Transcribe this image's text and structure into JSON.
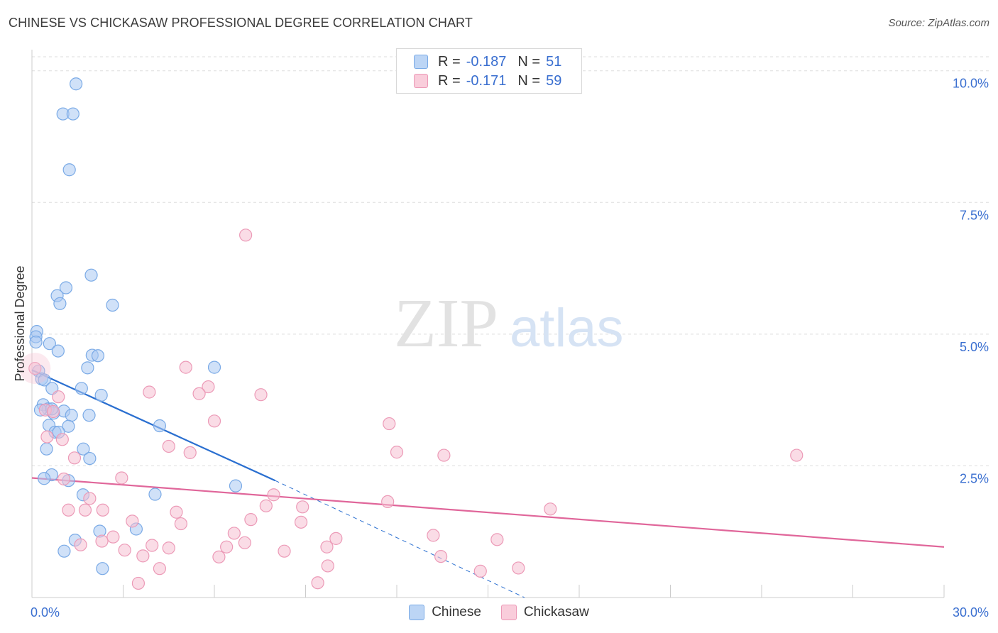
{
  "header": {
    "title": "CHINESE VS CHICKASAW PROFESSIONAL DEGREE CORRELATION CHART",
    "source": "Source: ZipAtlas.com"
  },
  "watermark": {
    "zip": "ZIP",
    "atlas": "atlas"
  },
  "legend": {
    "chinese": {
      "r_label": "R =",
      "r_value": "-0.187",
      "n_label": "N =",
      "n_value": "51"
    },
    "chickasaw": {
      "r_label": "R =",
      "r_value": "-0.171",
      "n_label": "N =",
      "n_value": "59"
    }
  },
  "colors": {
    "chinese_fill": "#a9c9f2",
    "chinese_stroke": "#7aaae6",
    "chinese_line": "#2a6fd0",
    "chickasaw_fill": "#f6bfd1",
    "chickasaw_stroke": "#ec9ab7",
    "chickasaw_line": "#e0669a",
    "axis_label": "#3a6fd0",
    "grid": "#dddddd"
  },
  "chart_data": {
    "type": "scatter",
    "title": "CHINESE VS CHICKASAW PROFESSIONAL DEGREE CORRELATION CHART",
    "xlabel": "",
    "ylabel": "Professional Degree",
    "xlim": [
      0,
      30
    ],
    "ylim": [
      0,
      10.4
    ],
    "x_tick_labels": [
      "0.0%",
      "30.0%"
    ],
    "y_ticks": [
      2.5,
      5.0,
      7.5,
      10.0
    ],
    "y_tick_labels": [
      "2.5%",
      "5.0%",
      "7.5%",
      "10.0%"
    ],
    "grid": true,
    "legend_position": "top-center",
    "series": [
      {
        "name": "Chinese",
        "r": -0.187,
        "n": 51,
        "points": [
          [
            1.45,
            9.75
          ],
          [
            1.02,
            9.18
          ],
          [
            1.35,
            9.18
          ],
          [
            1.23,
            8.12
          ],
          [
            1.95,
            6.12
          ],
          [
            1.12,
            5.88
          ],
          [
            0.83,
            5.73
          ],
          [
            0.92,
            5.58
          ],
          [
            2.65,
            5.55
          ],
          [
            0.16,
            5.05
          ],
          [
            0.13,
            4.95
          ],
          [
            0.13,
            4.85
          ],
          [
            0.58,
            4.82
          ],
          [
            0.86,
            4.68
          ],
          [
            1.98,
            4.6
          ],
          [
            2.17,
            4.59
          ],
          [
            1.83,
            4.36
          ],
          [
            6.0,
            4.37
          ],
          [
            0.22,
            4.3
          ],
          [
            0.32,
            4.15
          ],
          [
            0.41,
            4.13
          ],
          [
            0.66,
            3.97
          ],
          [
            1.63,
            3.97
          ],
          [
            2.28,
            3.84
          ],
          [
            0.37,
            3.66
          ],
          [
            0.53,
            3.58
          ],
          [
            0.28,
            3.56
          ],
          [
            1.05,
            3.54
          ],
          [
            0.71,
            3.5
          ],
          [
            1.88,
            3.46
          ],
          [
            1.3,
            3.46
          ],
          [
            0.56,
            3.27
          ],
          [
            1.2,
            3.25
          ],
          [
            4.2,
            3.26
          ],
          [
            0.76,
            3.14
          ],
          [
            0.88,
            3.14
          ],
          [
            0.48,
            2.82
          ],
          [
            1.69,
            2.82
          ],
          [
            1.9,
            2.64
          ],
          [
            0.65,
            2.33
          ],
          [
            0.4,
            2.26
          ],
          [
            1.2,
            2.22
          ],
          [
            6.7,
            2.12
          ],
          [
            4.05,
            1.96
          ],
          [
            1.68,
            1.95
          ],
          [
            3.43,
            1.3
          ],
          [
            2.23,
            1.26
          ],
          [
            1.42,
            1.09
          ],
          [
            1.06,
            0.88
          ],
          [
            2.32,
            0.55
          ],
          [
            0.65,
            3.58
          ]
        ],
        "trend": {
          "x1": 0,
          "y1": 4.32,
          "x2": 8.0,
          "y2": 2.22,
          "dashed_to_x": 16.2,
          "dashed_to_y": 0.0
        }
      },
      {
        "name": "Chickasaw",
        "r": -0.171,
        "n": 59,
        "points": [
          [
            7.03,
            6.88
          ],
          [
            5.06,
            4.37
          ],
          [
            5.8,
            4.0
          ],
          [
            3.86,
            3.9
          ],
          [
            5.5,
            3.87
          ],
          [
            7.53,
            3.85
          ],
          [
            0.87,
            3.81
          ],
          [
            0.44,
            3.56
          ],
          [
            0.7,
            3.53
          ],
          [
            6.0,
            3.35
          ],
          [
            11.75,
            3.3
          ],
          [
            0.5,
            3.05
          ],
          [
            4.5,
            2.87
          ],
          [
            5.2,
            2.75
          ],
          [
            12.0,
            2.76
          ],
          [
            13.55,
            2.7
          ],
          [
            25.15,
            2.7
          ],
          [
            1.4,
            2.65
          ],
          [
            2.95,
            2.27
          ],
          [
            1.05,
            2.25
          ],
          [
            1.9,
            1.88
          ],
          [
            7.95,
            1.95
          ],
          [
            11.7,
            1.82
          ],
          [
            7.7,
            1.74
          ],
          [
            8.9,
            1.72
          ],
          [
            17.05,
            1.68
          ],
          [
            1.2,
            1.66
          ],
          [
            1.75,
            1.66
          ],
          [
            2.33,
            1.66
          ],
          [
            4.75,
            1.62
          ],
          [
            3.3,
            1.45
          ],
          [
            7.2,
            1.48
          ],
          [
            8.85,
            1.43
          ],
          [
            4.9,
            1.4
          ],
          [
            6.65,
            1.22
          ],
          [
            13.2,
            1.18
          ],
          [
            2.67,
            1.15
          ],
          [
            10.0,
            1.12
          ],
          [
            15.3,
            1.1
          ],
          [
            2.3,
            1.07
          ],
          [
            7.0,
            1.04
          ],
          [
            1.6,
            1.0
          ],
          [
            3.95,
            0.99
          ],
          [
            4.5,
            0.94
          ],
          [
            6.4,
            0.96
          ],
          [
            9.7,
            0.96
          ],
          [
            3.05,
            0.9
          ],
          [
            8.3,
            0.88
          ],
          [
            3.65,
            0.79
          ],
          [
            6.15,
            0.77
          ],
          [
            13.45,
            0.78
          ],
          [
            9.73,
            0.6
          ],
          [
            4.2,
            0.55
          ],
          [
            14.75,
            0.5
          ],
          [
            16.0,
            0.56
          ],
          [
            3.5,
            0.27
          ],
          [
            9.4,
            0.28
          ],
          [
            0.1,
            4.35
          ],
          [
            1.0,
            3.0
          ]
        ],
        "trend": {
          "x1": 0,
          "y1": 2.27,
          "x2": 30.0,
          "y2": 0.96
        }
      }
    ]
  },
  "bottom_legend": [
    {
      "label": "Chinese"
    },
    {
      "label": "Chickasaw"
    }
  ]
}
